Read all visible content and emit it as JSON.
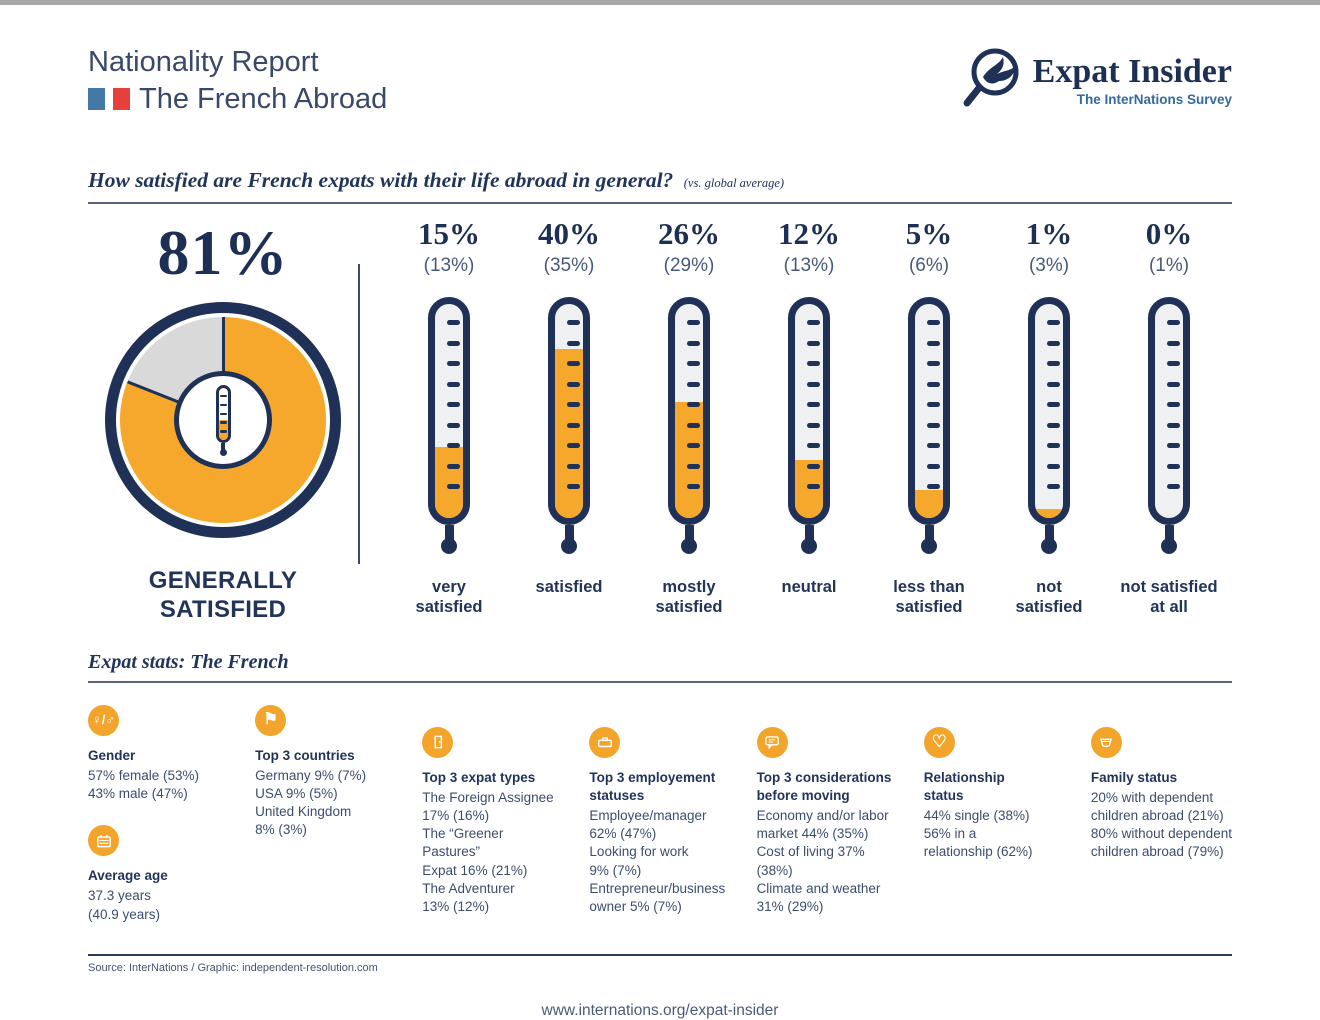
{
  "colors": {
    "navy": "#1F3156",
    "orange": "#F5A82B",
    "pie_gray": "#D9D9D9",
    "accent_blue": "#356A9E",
    "flag_blue": "#4478A6",
    "flag_red": "#E6403C"
  },
  "header": {
    "report_title": "Nationality Report",
    "report_subtitle": "The French Abroad",
    "logo_title": "Expat Insider",
    "logo_subtitle": "The InterNations Survey"
  },
  "question": {
    "title": "How satisfied are French expats with their life abroad in general?",
    "note": "(vs. global average)"
  },
  "summary": {
    "value": "81%",
    "percent": 81,
    "caption": "GENERALLY\nSATISFIED"
  },
  "thermometers": [
    {
      "value": "15%",
      "global": "(13%)",
      "label": "very\nsatisfied",
      "fill_pct": 33
    },
    {
      "value": "40%",
      "global": "(35%)",
      "label": "satisfied",
      "fill_pct": 79
    },
    {
      "value": "26%",
      "global": "(29%)",
      "label": "mostly\nsatisfied",
      "fill_pct": 54
    },
    {
      "value": "12%",
      "global": "(13%)",
      "label": "neutral",
      "fill_pct": 27
    },
    {
      "value": "5%",
      "global": "(6%)",
      "label": "less than\nsatisfied",
      "fill_pct": 13
    },
    {
      "value": "1%",
      "global": "(3%)",
      "label": "not\nsatisfied",
      "fill_pct": 4
    },
    {
      "value": "0%",
      "global": "(1%)",
      "label": "not satisfied\nat all",
      "fill_pct": 0
    }
  ],
  "chart_data": [
    {
      "type": "pie",
      "title": "Generally satisfied",
      "labels": [
        "generally satisfied",
        "other"
      ],
      "values": [
        81,
        19
      ]
    },
    {
      "type": "bar",
      "title": "How satisfied are French expats with their life abroad in general?",
      "categories": [
        "very satisfied",
        "satisfied",
        "mostly satisfied",
        "neutral",
        "less than satisfied",
        "not satisfied",
        "not satisfied at all"
      ],
      "series": [
        {
          "name": "French expats",
          "values": [
            15,
            40,
            26,
            12,
            5,
            1,
            0
          ]
        },
        {
          "name": "global average",
          "values": [
            13,
            35,
            29,
            13,
            6,
            3,
            1
          ]
        }
      ],
      "unit": "%"
    }
  ],
  "stats": {
    "title": "Expat stats: The French",
    "items": [
      {
        "icon": "gender-icon",
        "glyph": "♀/♂",
        "heading": "Gender",
        "body": "57% female (53%)\n43% male (47%)"
      },
      {
        "icon": "calendar-icon",
        "heading": "Average age",
        "body": "37.3 years\n(40.9 years)"
      },
      {
        "icon": "flag-icon",
        "glyph": "⚑",
        "heading": "Top 3 countries",
        "body": "Germany 9% (7%)\nUSA 9% (5%)\nUnited Kingdom\n8% (3%)"
      },
      {
        "icon": "door-icon",
        "heading": "Top 3 expat types",
        "body": "The Foreign Assignee\n17% (16%)\nThe “Greener Pastures”\nExpat 16% (21%)\nThe Adventurer\n13% (12%)"
      },
      {
        "icon": "briefcase-icon",
        "heading": "Top 3 employement\nstatuses",
        "body": "Employee/manager\n62% (47%)\nLooking for work\n9% (7%)\nEntrepreneur/business\nowner 5% (7%)"
      },
      {
        "icon": "speech-bubble-icon",
        "heading": "Top 3 considerations\nbefore moving",
        "body": "Economy and/or labor\nmarket 44% (35%)\nCost of living 37% (38%)\nClimate and weather\n31% (29%)"
      },
      {
        "icon": "heart-icon",
        "glyph": "♡",
        "heading": "Relationship\nstatus",
        "body": "44% single (38%)\n56% in a\nrelationship (62%)"
      },
      {
        "icon": "cradle-icon",
        "heading": "Family status",
        "body": "20% with dependent\nchildren abroad (21%)\n80% without dependent\nchildren abroad (79%)"
      }
    ]
  },
  "source": "Source: InterNations / Graphic: independent-resolution.com",
  "footer_url": "www.internations.org/expat-insider"
}
